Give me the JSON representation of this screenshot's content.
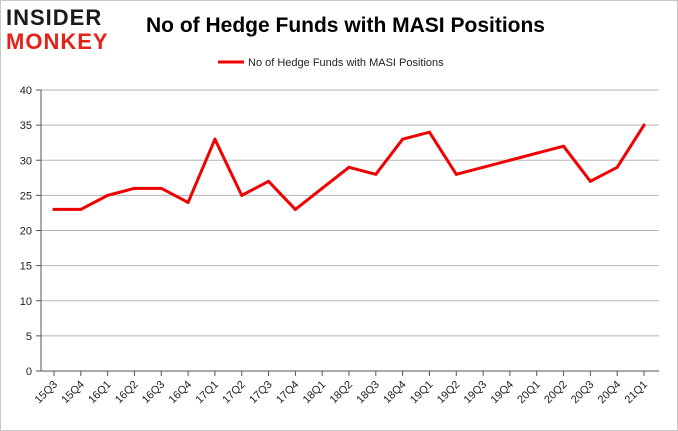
{
  "brand": {
    "logo_line1": "INSIDER",
    "logo_line2": "MONKEY",
    "logo_dark": "#1a1a1a",
    "logo_red": "#e2231a"
  },
  "chart_data": {
    "type": "line",
    "title": "No of Hedge Funds with MASI Positions",
    "xlabel": "",
    "ylabel": "",
    "categories": [
      "15Q3",
      "15Q4",
      "16Q1",
      "16Q2",
      "16Q3",
      "16Q4",
      "17Q1",
      "17Q2",
      "17Q3",
      "17Q4",
      "18Q1",
      "18Q2",
      "18Q3",
      "18Q4",
      "19Q1",
      "19Q2",
      "19Q3",
      "19Q4",
      "20Q1",
      "20Q2",
      "20Q3",
      "20Q4",
      "21Q1"
    ],
    "series": [
      {
        "name": "No of Hedge Funds with MASI Positions",
        "color": "#ee0000",
        "values": [
          23,
          23,
          25,
          26,
          26,
          24,
          33,
          25,
          27,
          23,
          26,
          29,
          28,
          33,
          34,
          28,
          29,
          30,
          31,
          32,
          27,
          29,
          35
        ]
      }
    ],
    "ylim": [
      0,
      40
    ],
    "yticks": [
      0,
      5,
      10,
      15,
      20,
      25,
      30,
      35,
      40
    ],
    "grid": "horizontal",
    "legend": "top-center"
  }
}
